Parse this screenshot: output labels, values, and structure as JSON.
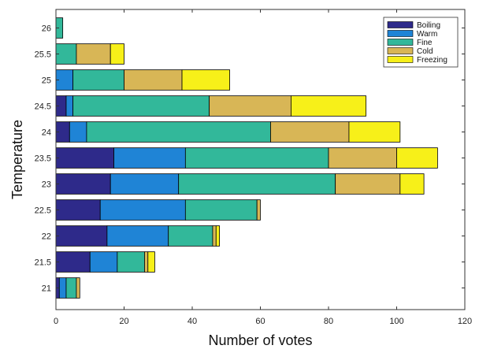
{
  "chart_data": {
    "type": "bar",
    "orientation": "horizontal",
    "stacked": true,
    "xlabel": "Number of votes",
    "ylabel": "Temperature",
    "xlim": [
      0,
      120
    ],
    "xticks": [
      0,
      20,
      40,
      60,
      80,
      100,
      120
    ],
    "grid": false,
    "legend_position": "top-right",
    "categories": [
      "21",
      "21.5",
      "22",
      "22.5",
      "23",
      "23.5",
      "24",
      "24.5",
      "25",
      "25.5",
      "26"
    ],
    "series": [
      {
        "name": "Boiling",
        "color": "#2e2a8a",
        "values": [
          1,
          10,
          15,
          13,
          16,
          17,
          4,
          3,
          0,
          0,
          0
        ]
      },
      {
        "name": "Warm",
        "color": "#1f84d6",
        "values": [
          2,
          8,
          18,
          25,
          20,
          21,
          5,
          2,
          5,
          0,
          0
        ]
      },
      {
        "name": "Fine",
        "color": "#32b89a",
        "values": [
          3,
          8,
          13,
          21,
          46,
          42,
          54,
          40,
          15,
          6,
          2
        ]
      },
      {
        "name": "Cold",
        "color": "#d8b656",
        "values": [
          1,
          1,
          1,
          1,
          19,
          20,
          23,
          24,
          17,
          10,
          0
        ]
      },
      {
        "name": "Freezing",
        "color": "#f7f019",
        "values": [
          0,
          2,
          1,
          0,
          7,
          12,
          15,
          22,
          14,
          4,
          0
        ]
      }
    ]
  }
}
